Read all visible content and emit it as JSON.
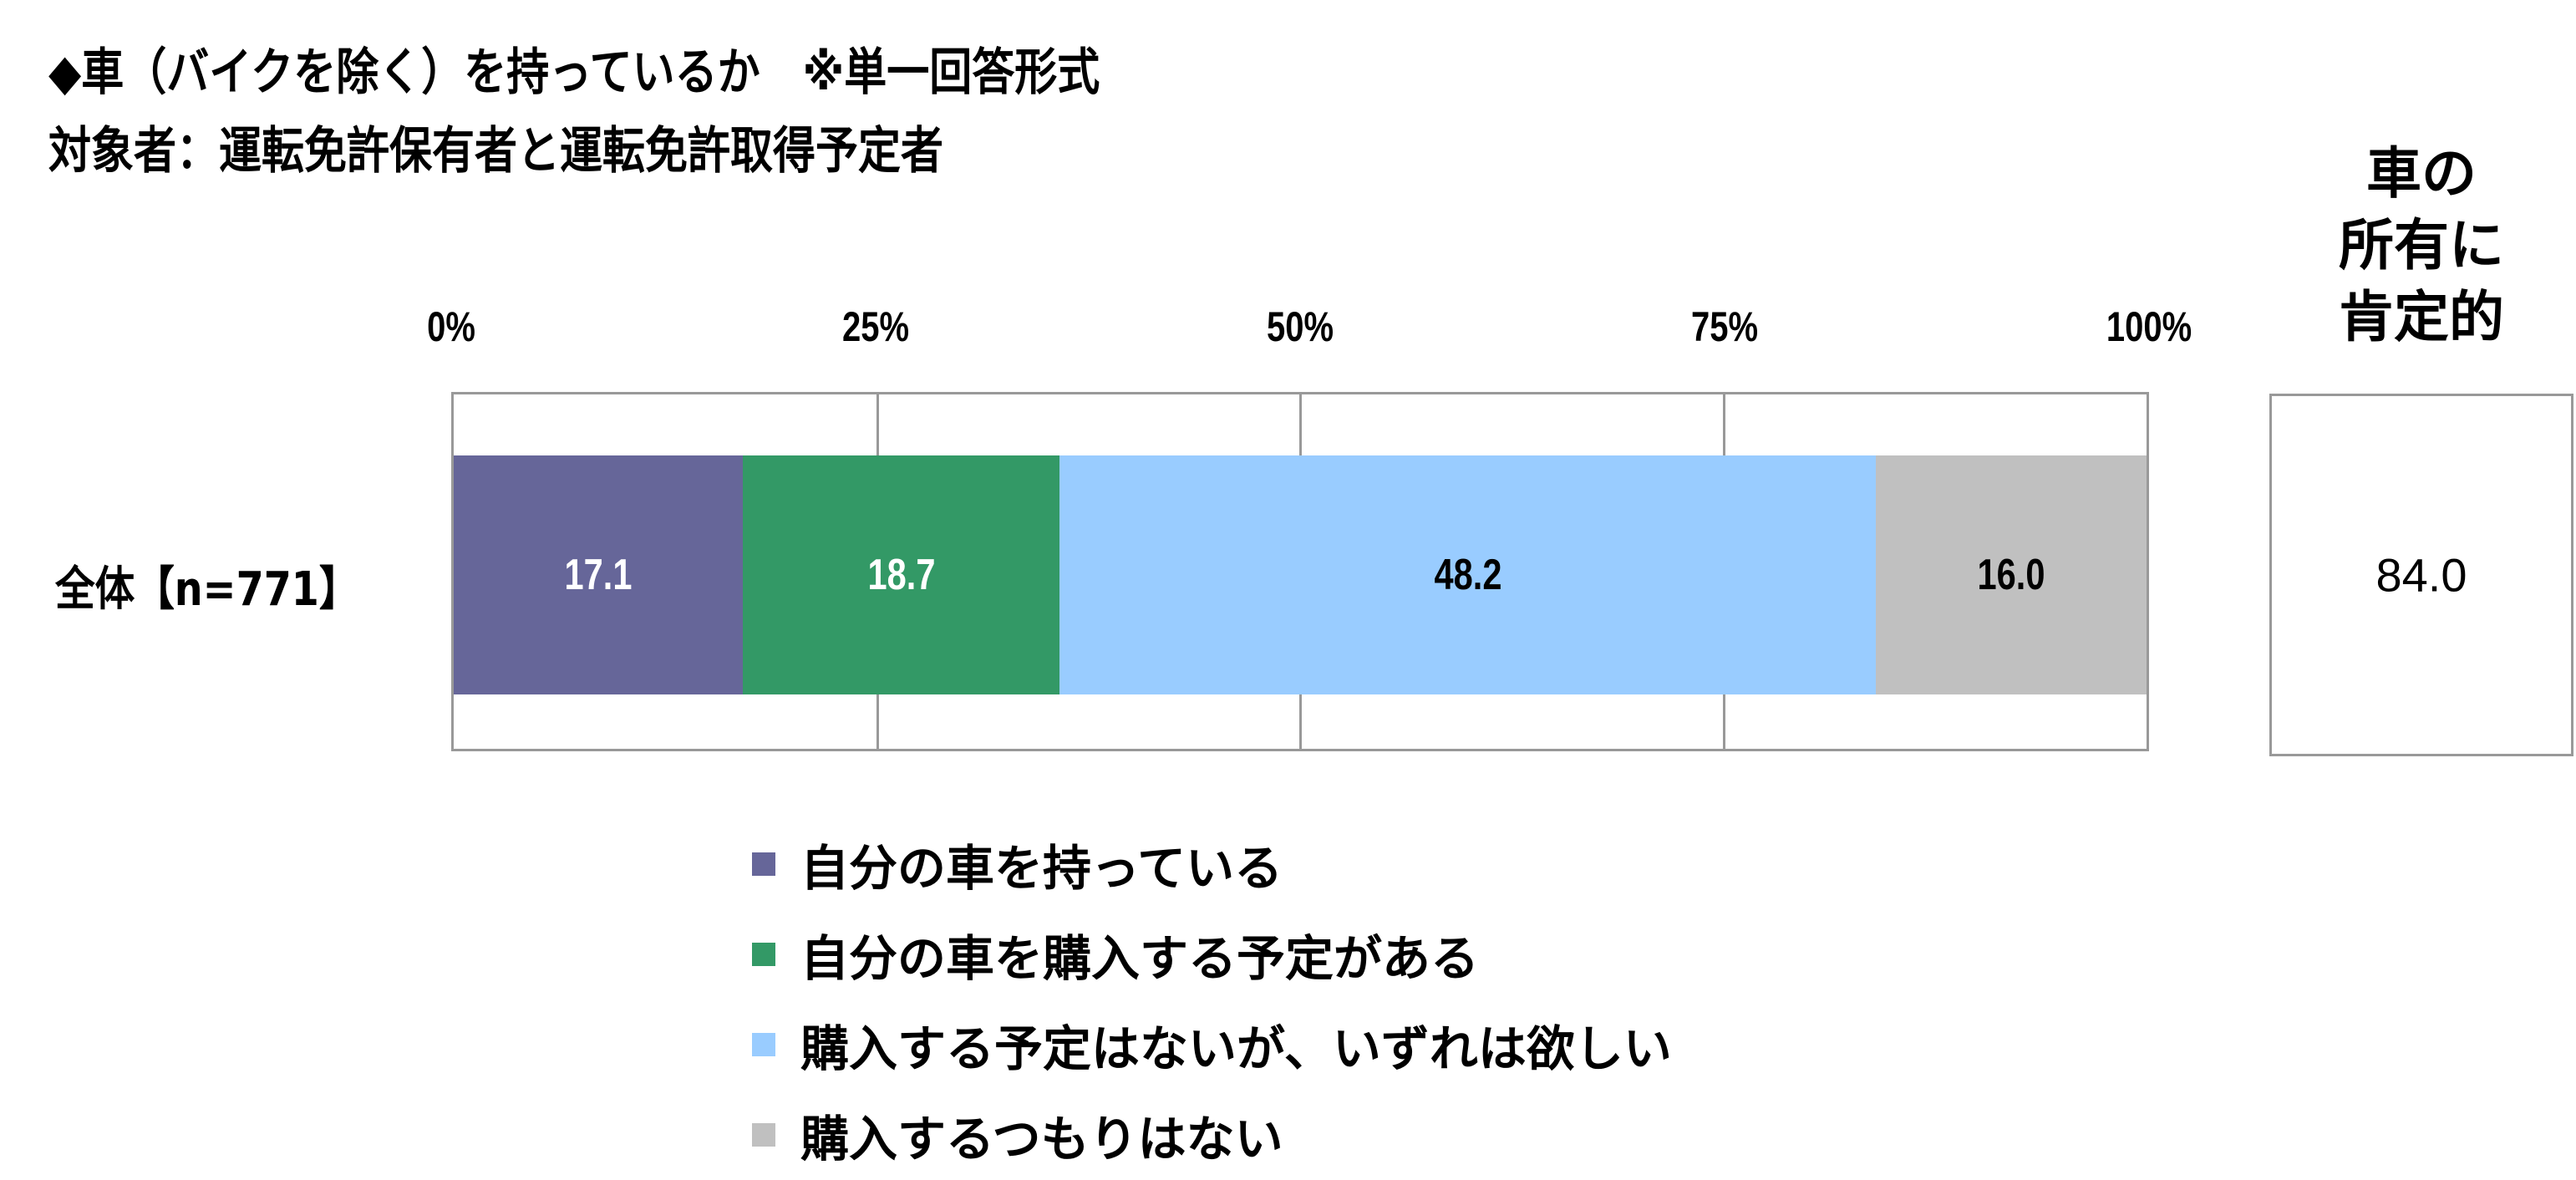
{
  "title": "◆車（バイクを除く）を持っているか　※単一回答形式",
  "subtitle": "対象者：運転免許保有者と運転免許取得予定者",
  "right_header": [
    "車の",
    "所有に",
    "肯定的"
  ],
  "chart_data": {
    "type": "bar",
    "orientation": "horizontal-stacked-100",
    "categories": [
      "全体【n=771】"
    ],
    "xlim": [
      0,
      100
    ],
    "x_ticks": [
      "0%",
      "25%",
      "50%",
      "75%",
      "100%"
    ],
    "grid": true,
    "legend_position": "bottom",
    "series": [
      {
        "name": "自分の車を持っている",
        "values": [
          17.1
        ],
        "labels": [
          "17.1"
        ],
        "color": "#666699",
        "label_color": "#ffffff"
      },
      {
        "name": "自分の車を購入する予定がある",
        "values": [
          18.7
        ],
        "labels": [
          "18.7"
        ],
        "color": "#339966",
        "label_color": "#ffffff"
      },
      {
        "name": "購入する予定はないが、いずれは欲しい",
        "values": [
          48.2
        ],
        "labels": [
          "48.2"
        ],
        "color": "#99CCFF",
        "label_color": "#000000"
      },
      {
        "name": "購入するつもりはない",
        "values": [
          16.0
        ],
        "labels": [
          "16.0"
        ],
        "color": "#C0C0C0",
        "label_color": "#000000"
      }
    ],
    "summary": {
      "label": "車の所有に肯定的",
      "values": [
        "84.0"
      ]
    }
  }
}
